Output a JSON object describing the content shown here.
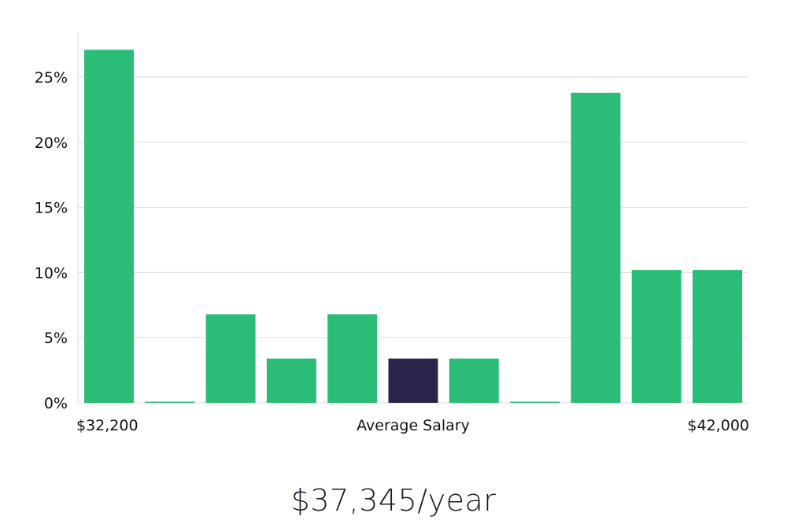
{
  "chart_data": {
    "type": "bar",
    "yticks": [
      "0%",
      "5%",
      "10%",
      "15%",
      "20%",
      "25%"
    ],
    "ylim": [
      0,
      28
    ],
    "values": [
      27.1,
      0,
      6.8,
      3.4,
      6.8,
      3.4,
      3.4,
      0,
      23.8,
      10.2,
      10.2
    ],
    "highlight_index": 5,
    "x_labels": {
      "left": "$32,200",
      "center": "Average Salary",
      "right": "$42,000"
    },
    "grid": true,
    "colors": {
      "bar": "#2bbd77",
      "highlight": "#29254a",
      "grid": "#dcdcdc"
    }
  },
  "salary": {
    "display": "$37,345/year"
  }
}
